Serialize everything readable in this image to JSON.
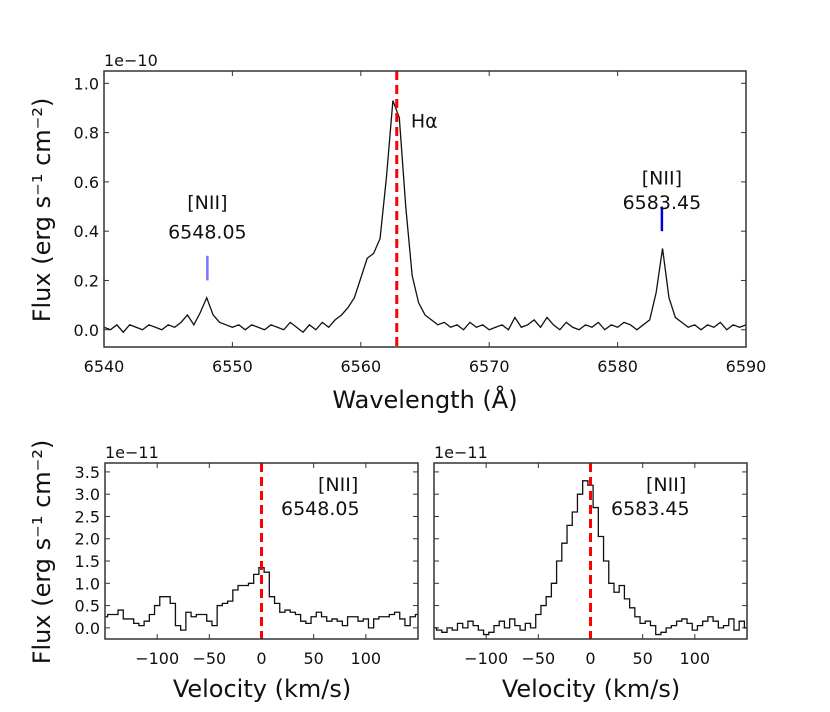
{
  "chart_data": [
    {
      "type": "line",
      "xlabel": "Wavelength (Å)",
      "ylabel": "Flux (erg s⁻¹ cm⁻²)",
      "offset_label": "1e−10",
      "xlim": [
        6540,
        6590
      ],
      "ylim": [
        -0.07,
        1.05
      ],
      "xticks": [
        6540,
        6550,
        6560,
        6570,
        6580,
        6590
      ],
      "yticks": [
        0.0,
        0.2,
        0.4,
        0.6,
        0.8,
        1.0
      ],
      "ytick_labels": [
        "0.0",
        "0.2",
        "0.4",
        "0.6",
        "0.8",
        "1.0"
      ],
      "x": [
        6540,
        6540.5,
        6541,
        6541.5,
        6542,
        6542.5,
        6543,
        6543.5,
        6544,
        6544.5,
        6545,
        6545.5,
        6546,
        6546.5,
        6547,
        6547.5,
        6548,
        6548.5,
        6549,
        6549.5,
        6550,
        6550.5,
        6551,
        6551.5,
        6552,
        6552.5,
        6553,
        6553.5,
        6554,
        6554.5,
        6555,
        6555.5,
        6556,
        6556.5,
        6557,
        6557.5,
        6558,
        6558.5,
        6559,
        6559.5,
        6560,
        6560.5,
        6561,
        6561.5,
        6562,
        6562.5,
        6563,
        6563.5,
        6564,
        6564.5,
        6565,
        6565.5,
        6566,
        6566.5,
        6567,
        6567.5,
        6568,
        6568.5,
        6569,
        6569.5,
        6570,
        6570.5,
        6571,
        6571.5,
        6572,
        6572.5,
        6573,
        6573.5,
        6574,
        6574.5,
        6575,
        6575.5,
        6576,
        6576.5,
        6577,
        6577.5,
        6578,
        6578.5,
        6579,
        6579.5,
        6580,
        6580.5,
        6581,
        6581.5,
        6582,
        6582.5,
        6583,
        6583.5,
        6584,
        6584.5,
        6585,
        6585.5,
        6586,
        6586.5,
        6587,
        6587.5,
        6588,
        6588.5,
        6589,
        6589.5,
        6590
      ],
      "series": [
        {
          "values": [
            0.01,
            0.0,
            0.02,
            -0.01,
            0.02,
            0.01,
            0.0,
            0.02,
            0.01,
            0.0,
            0.02,
            0.01,
            0.03,
            0.06,
            0.02,
            0.07,
            0.13,
            0.06,
            0.03,
            0.02,
            0.01,
            0.02,
            0.0,
            0.02,
            0.01,
            0.0,
            0.02,
            0.01,
            0.0,
            0.03,
            0.01,
            -0.01,
            0.02,
            0.0,
            0.03,
            0.01,
            0.04,
            0.06,
            0.09,
            0.13,
            0.21,
            0.29,
            0.31,
            0.37,
            0.62,
            0.93,
            0.86,
            0.5,
            0.22,
            0.11,
            0.06,
            0.04,
            0.02,
            0.03,
            0.01,
            0.02,
            0.0,
            0.03,
            0.01,
            0.02,
            0.0,
            0.01,
            0.02,
            0.0,
            0.05,
            0.01,
            0.02,
            0.04,
            0.01,
            0.05,
            0.02,
            0.0,
            0.03,
            0.01,
            0.0,
            0.02,
            0.01,
            0.03,
            0.0,
            0.02,
            0.01,
            0.03,
            0.02,
            0.0,
            0.02,
            0.04,
            0.15,
            0.33,
            0.13,
            0.05,
            0.03,
            0.01,
            0.02,
            0.0,
            0.02,
            0.01,
            0.03,
            0.0,
            0.02,
            0.01,
            0.02
          ],
          "color": "#111111"
        }
      ],
      "reference_line": {
        "x": 6562.8,
        "style": "dashed",
        "color": "#ff0000"
      },
      "annotations": [
        {
          "text": "Hα",
          "x": 6563.9,
          "y": 0.82
        },
        {
          "text": "[NII]",
          "x": 6548.05,
          "y": 0.49
        },
        {
          "text": "6548.05",
          "x": 6548.05,
          "y": 0.37
        },
        {
          "text": "[NII]",
          "x": 6583.45,
          "y": 0.59
        },
        {
          "text": "6583.45",
          "x": 6583.45,
          "y": 0.49
        }
      ],
      "markers": [
        {
          "x": 6548.05,
          "y0": 0.2,
          "y1": 0.3,
          "color": "#7777ff"
        },
        {
          "x": 6583.45,
          "y0": 0.4,
          "y1": 0.5,
          "color": "#0000dd"
        }
      ]
    },
    {
      "type": "line",
      "xlabel": "Velocity (km/s)",
      "ylabel": "Flux (erg s⁻¹ cm⁻²)",
      "offset_label": "1e−11",
      "xlim": [
        -150,
        150
      ],
      "ylim": [
        -0.25,
        3.7
      ],
      "xticks": [
        -100,
        -50,
        0,
        50,
        100
      ],
      "xtick_labels": [
        "−100",
        "−50",
        "0",
        "50",
        "100"
      ],
      "yticks": [
        0.0,
        0.5,
        1.0,
        1.5,
        2.0,
        2.5,
        3.0,
        3.5
      ],
      "ytick_labels": [
        "0.0",
        "0.5",
        "1.0",
        "1.5",
        "2.0",
        "2.5",
        "3.0",
        "3.5"
      ],
      "step": true,
      "series": [
        {
          "values": [
            0.25,
            0.3,
            0.3,
            0.4,
            0.2,
            0.2,
            0.1,
            0.05,
            0.15,
            0.3,
            0.5,
            0.7,
            0.7,
            0.55,
            0.05,
            -0.05,
            0.35,
            0.25,
            0.3,
            0.3,
            0.15,
            0.05,
            0.5,
            0.55,
            0.6,
            0.85,
            0.95,
            0.95,
            1.0,
            1.2,
            1.35,
            1.25,
            0.7,
            0.55,
            0.35,
            0.4,
            0.35,
            0.3,
            0.15,
            0.1,
            0.25,
            0.35,
            0.25,
            0.15,
            0.2,
            0.15,
            0.05,
            0.25,
            0.25,
            0.15,
            0.2,
            0.0,
            0.2,
            0.25,
            0.25,
            0.3,
            0.35,
            0.2,
            0.05,
            0.25,
            0.3
          ],
          "color": "#111111"
        }
      ],
      "reference_line": {
        "x": 0,
        "style": "dashed",
        "color": "#ff0000"
      },
      "annotations": [
        {
          "text": "[NII]",
          "x": 48
        },
        {
          "text": "6548.05",
          "x": 50
        }
      ]
    },
    {
      "type": "line",
      "xlabel": "Velocity (km/s)",
      "offset_label": "1e−11",
      "xlim": [
        -150,
        150
      ],
      "ylim": [
        -0.25,
        3.7
      ],
      "xticks": [
        -100,
        -50,
        0,
        50,
        100
      ],
      "xtick_labels": [
        "−100",
        "−50",
        "0",
        "50",
        "100"
      ],
      "yticks": [
        0.0,
        0.5,
        1.0,
        1.5,
        2.0,
        2.5,
        3.0,
        3.5
      ],
      "step": true,
      "series": [
        {
          "values": [
            0.0,
            -0.05,
            -0.1,
            0.0,
            -0.05,
            0.1,
            0.0,
            0.15,
            0.05,
            -0.05,
            -0.15,
            -0.1,
            0.05,
            0.15,
            0.0,
            0.2,
            0.05,
            -0.05,
            0.1,
            0.0,
            0.3,
            0.5,
            0.7,
            1.0,
            1.5,
            1.9,
            2.3,
            2.6,
            3.0,
            3.3,
            3.2,
            2.7,
            2.05,
            1.5,
            1.0,
            0.8,
            0.95,
            0.65,
            0.45,
            0.25,
            0.1,
            0.15,
            0.05,
            -0.15,
            -0.1,
            0.0,
            0.05,
            0.15,
            0.2,
            0.1,
            -0.05,
            0.05,
            0.15,
            0.25,
            0.15,
            0.0,
            0.05,
            0.2,
            -0.05,
            0.15,
            0.0
          ],
          "color": "#111111"
        }
      ],
      "reference_line": {
        "x": 0,
        "style": "dashed",
        "color": "#ff0000"
      },
      "annotations": [
        {
          "text": "[NII]",
          "x": 45
        },
        {
          "text": "6583.45",
          "x": 47
        }
      ]
    }
  ]
}
